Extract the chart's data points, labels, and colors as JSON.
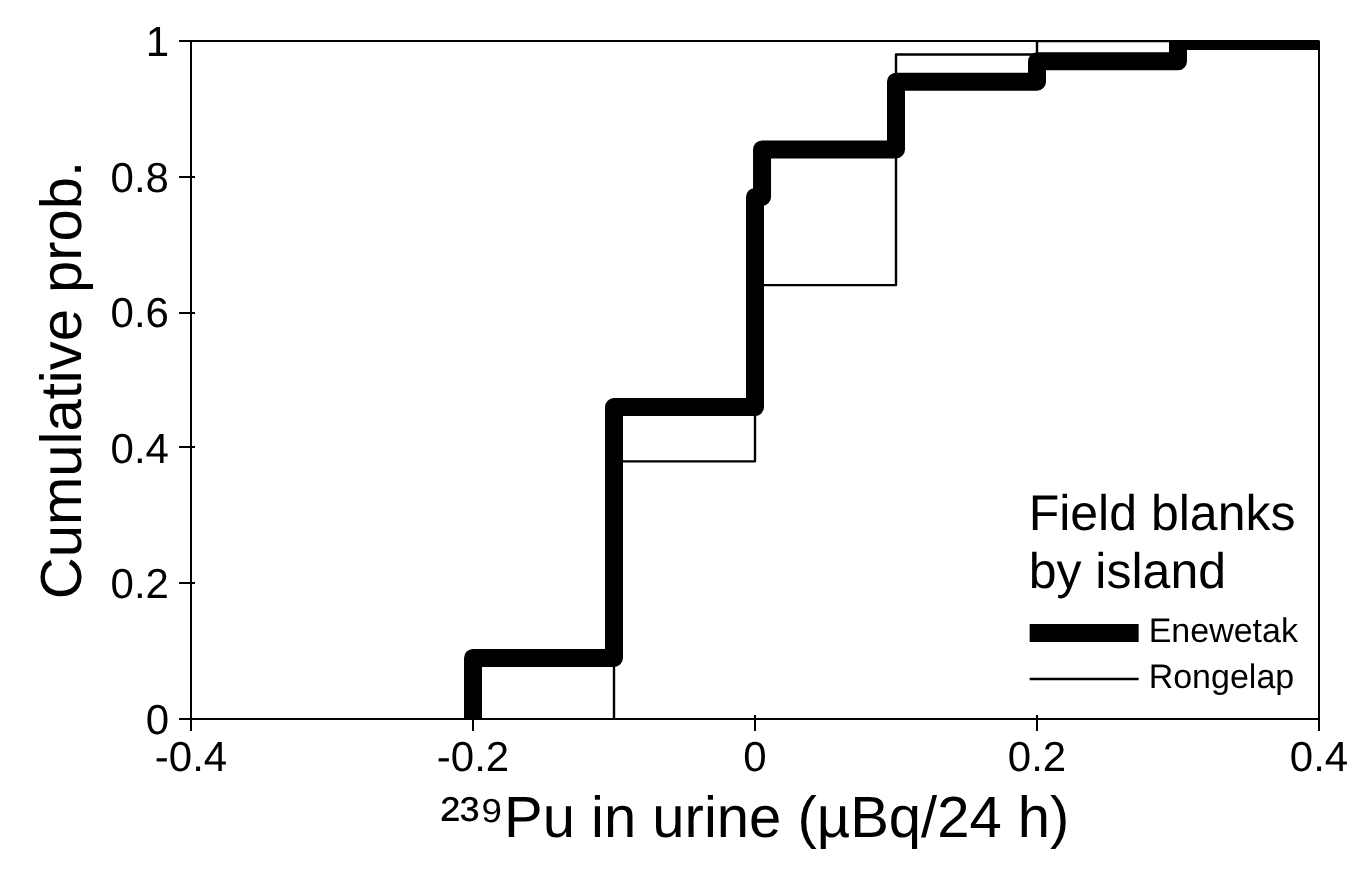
{
  "chart_data": {
    "type": "step",
    "xlabel": "²³⁹Pu in urine (µBq/24 h)",
    "ylabel": "Cumulative prob.",
    "legend_title": "Field blanks\nby island",
    "legend": "bottom right",
    "grid": false,
    "xlim": [
      -0.4,
      0.4
    ],
    "xticks": [
      -0.4,
      -0.2,
      0,
      0.2,
      0.4
    ],
    "ylim": [
      0,
      1
    ],
    "yticks": [
      0,
      0.2,
      0.4,
      0.6,
      0.8,
      1
    ],
    "series": [
      {
        "name": "Enewetak",
        "color": "#000000",
        "x": [
          -0.2,
          -0.2,
          -0.1,
          0,
          0.005,
          0.1,
          0.2,
          0.3,
          0.4
        ],
        "values": [
          0,
          0.09,
          0.46,
          0.77,
          0.84,
          0.94,
          0.97,
          1,
          1
        ]
      },
      {
        "name": "Rongelap",
        "color": "#000000",
        "x": [
          -0.1,
          -0.1,
          0,
          0.1,
          0.2,
          0.4
        ],
        "values": [
          0,
          0.38,
          0.64,
          0.98,
          1,
          1
        ]
      }
    ]
  }
}
